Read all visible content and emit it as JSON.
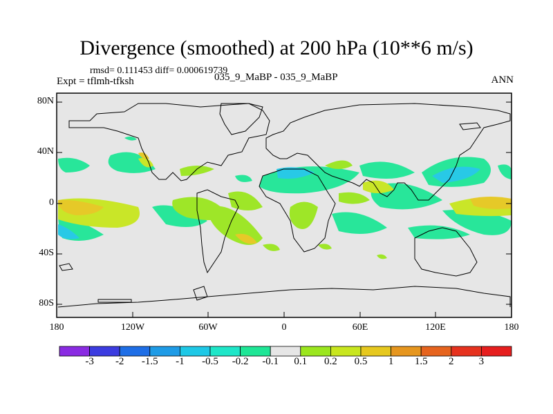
{
  "title": "Divergence (smoothed) at 200 hPa (10**6 m/s)",
  "stats": "rmsd= 0.111453  diff= 0.000619739",
  "experiment": "Expt = tflmh-tfksh",
  "cases": "035_9_MaBP - 035_9_MaBP",
  "season": "ANN",
  "map": {
    "background_color": "#e6e6e6",
    "coastline_color": "#000000",
    "y_ticks": [
      "80N",
      "40N",
      "0",
      "40S",
      "80S"
    ],
    "x_ticks": [
      "180",
      "120W",
      "60W",
      "0",
      "60E",
      "120E",
      "180"
    ]
  },
  "colorbar": {
    "labels": [
      "-3",
      "-2",
      "-1.5",
      "-1",
      "-0.5",
      "-0.2",
      "-0.1",
      "0.1",
      "0.2",
      "0.5",
      "1",
      "1.5",
      "2",
      "3"
    ],
    "colors": [
      "#8a2be2",
      "#3c3ce0",
      "#1e6ee6",
      "#1e9be6",
      "#1ec8e6",
      "#1ee6c8",
      "#1ee696",
      "#e6e6e6",
      "#9be61e",
      "#c8e61e",
      "#e6c81e",
      "#e6961e",
      "#e6641e",
      "#e6321e",
      "#e61e1e"
    ]
  }
}
